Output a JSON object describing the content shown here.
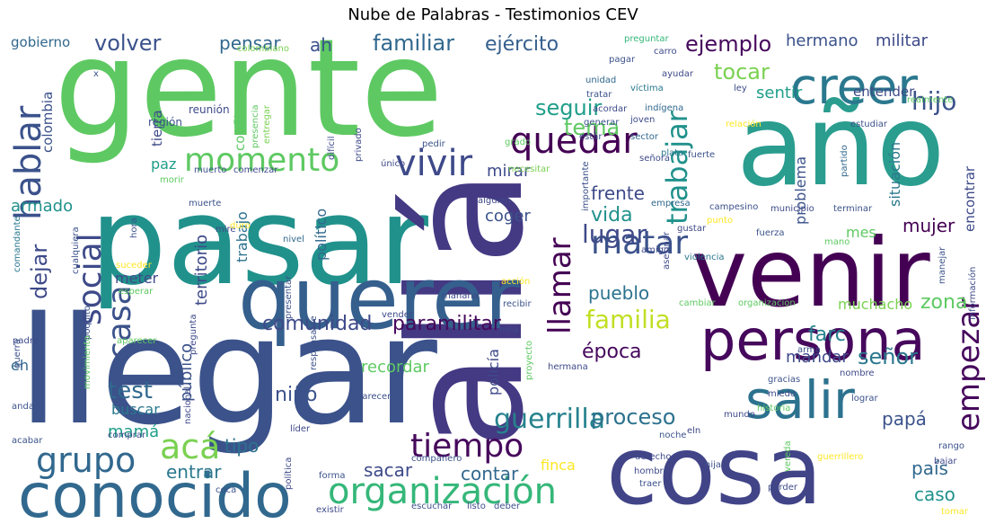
{
  "chart_data": {
    "type": "wordcloud",
    "title": "Nube de Palabras - Testimonios CEV",
    "colormap": "viridis",
    "words": [
      {
        "text": "gente",
        "weight": 1.0,
        "color": "#5ec962"
      },
      {
        "text": "llegar",
        "weight": 1.0,
        "color": "#3b528b"
      },
      {
        "text": "pasar",
        "weight": 0.95,
        "color": "#21918c"
      },
      {
        "text": "allá",
        "weight": 0.95,
        "color": "#443983"
      },
      {
        "text": "año",
        "weight": 0.9,
        "color": "#2a9d8f"
      },
      {
        "text": "venir",
        "weight": 0.88,
        "color": "#440154"
      },
      {
        "text": "querer",
        "weight": 0.85,
        "color": "#355f8d"
      },
      {
        "text": "cosa",
        "weight": 0.85,
        "color": "#414487"
      },
      {
        "text": "conocido",
        "weight": 0.65,
        "color": "#31688e"
      },
      {
        "text": "persona",
        "weight": 0.62,
        "color": "#46085c"
      },
      {
        "text": "creer",
        "weight": 0.55,
        "color": "#2a788e"
      },
      {
        "text": "salir",
        "weight": 0.5,
        "color": "#2c728e"
      },
      {
        "text": "organización",
        "weight": 0.45,
        "color": "#35b779"
      },
      {
        "text": "vivir",
        "weight": 0.4,
        "color": "#3e4a89"
      },
      {
        "text": "hablar",
        "weight": 0.4,
        "color": "#3b528b"
      },
      {
        "text": "quedar",
        "weight": 0.4,
        "color": "#440154"
      },
      {
        "text": "momento",
        "weight": 0.38,
        "color": "#5ec962"
      },
      {
        "text": "tiempo",
        "weight": 0.38,
        "color": "#46085c"
      },
      {
        "text": "matar",
        "weight": 0.36,
        "color": "#3b528b"
      },
      {
        "text": "acá",
        "weight": 0.36,
        "color": "#7ad151"
      },
      {
        "text": "grupo",
        "weight": 0.35,
        "color": "#31688e"
      },
      {
        "text": "social",
        "weight": 0.32,
        "color": "#3e4a89"
      },
      {
        "text": "casa",
        "weight": 0.32,
        "color": "#3b528b"
      },
      {
        "text": "empezar",
        "weight": 0.3,
        "color": "#46085c"
      },
      {
        "text": "llamar",
        "weight": 0.3,
        "color": "#440154"
      },
      {
        "text": "trabajar",
        "weight": 0.3,
        "color": "#21918c"
      },
      {
        "text": "guerrilla",
        "weight": 0.28,
        "color": "#26828e"
      },
      {
        "text": "familia",
        "weight": 0.27,
        "color": "#c2df23"
      },
      {
        "text": "familiar",
        "weight": 0.26,
        "color": "#31688e"
      },
      {
        "text": "lugar",
        "weight": 0.26,
        "color": "#3e4a89"
      },
      {
        "text": "hijo",
        "weight": 0.26,
        "color": "#3b528b"
      },
      {
        "text": "seguir",
        "weight": 0.25,
        "color": "#1f9e89"
      },
      {
        "text": "tocar",
        "weight": 0.25,
        "color": "#7ad151"
      },
      {
        "text": "ejemplo",
        "weight": 0.24,
        "color": "#46085c"
      },
      {
        "text": "tema",
        "weight": 0.24,
        "color": "#5ec962"
      },
      {
        "text": "volver",
        "weight": 0.22,
        "color": "#3b528b"
      },
      {
        "text": "ejército",
        "weight": 0.22,
        "color": "#355f8d"
      },
      {
        "text": "comunidad",
        "weight": 0.22,
        "color": "#3e4a89"
      },
      {
        "text": "paramilitar",
        "weight": 0.22,
        "color": "#46085c"
      },
      {
        "text": "proceso",
        "weight": 0.22,
        "color": "#2c728e"
      },
      {
        "text": "señor",
        "weight": 0.22,
        "color": "#2a788e"
      },
      {
        "text": "test",
        "weight": 0.22,
        "color": "#31688e"
      },
      {
        "text": "dejar",
        "weight": 0.22,
        "color": "#3e4a89"
      },
      {
        "text": "hermano",
        "weight": 0.2,
        "color": "#3b528b"
      },
      {
        "text": "militar",
        "weight": 0.2,
        "color": "#3e4a89"
      },
      {
        "text": "vida",
        "weight": 0.2,
        "color": "#21918c"
      },
      {
        "text": "frente",
        "weight": 0.2,
        "color": "#3e4a89"
      },
      {
        "text": "mujer",
        "weight": 0.2,
        "color": "#440154"
      },
      {
        "text": "sentir",
        "weight": 0.2,
        "color": "#1f9e89"
      },
      {
        "text": "farc",
        "weight": 0.2,
        "color": "#26828e"
      },
      {
        "text": "entrar",
        "weight": 0.2,
        "color": "#2a788e"
      },
      {
        "text": "niño",
        "weight": 0.2,
        "color": "#3b528b"
      },
      {
        "text": "época",
        "weight": 0.2,
        "color": "#46085c"
      },
      {
        "text": "pueblo",
        "weight": 0.2,
        "color": "#2c728e"
      },
      {
        "text": "zona",
        "weight": 0.2,
        "color": "#5ec962"
      },
      {
        "text": "contar",
        "weight": 0.18,
        "color": "#31688e"
      },
      {
        "text": "sacar",
        "weight": 0.18,
        "color": "#3e4a89"
      },
      {
        "text": "papá",
        "weight": 0.18,
        "color": "#3b528b"
      },
      {
        "text": "tipo",
        "weight": 0.18,
        "color": "#2c728e"
      },
      {
        "text": "mamá",
        "weight": 0.18,
        "color": "#1f9e89"
      },
      {
        "text": "país",
        "weight": 0.18,
        "color": "#31688e"
      },
      {
        "text": "caso",
        "weight": 0.18,
        "color": "#21918c"
      },
      {
        "text": "recordar",
        "weight": 0.18,
        "color": "#5ec962"
      },
      {
        "text": "mandar",
        "weight": 0.18,
        "color": "#3e4a89"
      },
      {
        "text": "pensar",
        "weight": 0.18,
        "color": "#31688e"
      },
      {
        "text": "ah",
        "weight": 0.18,
        "color": "#3b528b"
      },
      {
        "text": "mirar",
        "weight": 0.18,
        "color": "#3e4a89"
      },
      {
        "text": "coger",
        "weight": 0.16,
        "color": "#3b528b"
      },
      {
        "text": "armado",
        "weight": 0.16,
        "color": "#21918c"
      },
      {
        "text": "paz",
        "weight": 0.16,
        "color": "#1f9e89"
      },
      {
        "text": "mes",
        "weight": 0.16,
        "color": "#5ec962"
      },
      {
        "text": "meter",
        "weight": 0.16,
        "color": "#3e4a89"
      },
      {
        "text": "muchacho",
        "weight": 0.16,
        "color": "#7ad151"
      },
      {
        "text": "buscar",
        "weight": 0.16,
        "color": "#2a788e"
      },
      {
        "text": "finca",
        "weight": 0.15,
        "color": "#fde725"
      },
      {
        "text": "entender",
        "weight": 0.15,
        "color": "#3e4a89"
      },
      {
        "text": "gobierno",
        "weight": 0.15,
        "color": "#31688e"
      },
      {
        "text": "colombia",
        "weight": 0.14,
        "color": "#3b528b"
      },
      {
        "text": "territorio",
        "weight": 0.15,
        "color": "#3e4a89"
      },
      {
        "text": "trabajo",
        "weight": 0.14,
        "color": "#2c728e"
      },
      {
        "text": "público",
        "weight": 0.15,
        "color": "#3b528b"
      },
      {
        "text": "político",
        "weight": 0.14,
        "color": "#31688e"
      },
      {
        "text": "policía",
        "weight": 0.14,
        "color": "#3e4a89"
      },
      {
        "text": "problema",
        "weight": 0.14,
        "color": "#3b528b"
      },
      {
        "text": "situación",
        "weight": 0.14,
        "color": "#2a788e"
      },
      {
        "text": "encontrar",
        "weight": 0.14,
        "color": "#3e4a89"
      },
      {
        "text": "eh",
        "weight": 0.14,
        "color": "#31688e"
      },
      {
        "text": "conflicto",
        "weight": 0.12,
        "color": "#5ec962"
      },
      {
        "text": "tierra",
        "weight": 0.12,
        "color": "#3e4a89"
      },
      {
        "text": "región",
        "weight": 0.1,
        "color": "#3b528b"
      },
      {
        "text": "reunión",
        "weight": 0.1,
        "color": "#3e4a89"
      },
      {
        "text": "colombiano",
        "weight": 0.09,
        "color": "#7ad151"
      },
      {
        "text": "preguntar",
        "weight": 0.09,
        "color": "#35b779"
      },
      {
        "text": "carro",
        "weight": 0.09,
        "color": "#3e4a89"
      },
      {
        "text": "pagar",
        "weight": 0.09,
        "color": "#3b528b"
      },
      {
        "text": "unidad",
        "weight": 0.09,
        "color": "#31688e"
      },
      {
        "text": "ayudar",
        "weight": 0.09,
        "color": "#3e4a89"
      },
      {
        "text": "víctima",
        "weight": 0.09,
        "color": "#2a788e"
      },
      {
        "text": "tratar",
        "weight": 0.09,
        "color": "#3b528b"
      },
      {
        "text": "acordar",
        "weight": 0.09,
        "color": "#3e4a89"
      },
      {
        "text": "indígena",
        "weight": 0.09,
        "color": "#31688e"
      },
      {
        "text": "generar",
        "weight": 0.09,
        "color": "#3b528b"
      },
      {
        "text": "joven",
        "weight": 0.09,
        "color": "#3e4a89"
      },
      {
        "text": "estár",
        "weight": 0.09,
        "color": "#3b528b"
      },
      {
        "text": "sector",
        "weight": 0.09,
        "color": "#31688e"
      },
      {
        "text": "ley",
        "weight": 0.09,
        "color": "#3e4a89"
      },
      {
        "text": "realmente",
        "weight": 0.08,
        "color": "#5ec962"
      },
      {
        "text": "estudiar",
        "weight": 0.09,
        "color": "#3b528b"
      },
      {
        "text": "relación",
        "weight": 0.09,
        "color": "#fde725"
      },
      {
        "text": "presencia",
        "weight": 0.09,
        "color": "#5ec962"
      },
      {
        "text": "entregar",
        "weight": 0.09,
        "color": "#7ad151"
      },
      {
        "text": "difícil",
        "weight": 0.09,
        "color": "#3e4a89"
      },
      {
        "text": "pedir",
        "weight": 0.09,
        "color": "#3b528b"
      },
      {
        "text": "grado",
        "weight": 0.09,
        "color": "#5ec962"
      },
      {
        "text": "plata",
        "weight": 0.09,
        "color": "#2a788e"
      },
      {
        "text": "señora",
        "weight": 0.09,
        "color": "#3e4a89"
      },
      {
        "text": "fuerte",
        "weight": 0.09,
        "color": "#3b528b"
      },
      {
        "text": "partido",
        "weight": 0.09,
        "color": "#31688e"
      },
      {
        "text": "único",
        "weight": 0.09,
        "color": "#3e4a89"
      },
      {
        "text": "necesitar",
        "weight": 0.09,
        "color": "#7ad151"
      },
      {
        "text": "muerto",
        "weight": 0.09,
        "color": "#3b528b"
      },
      {
        "text": "comenzar",
        "weight": 0.09,
        "color": "#3e4a89"
      },
      {
        "text": "morir",
        "weight": 0.09,
        "color": "#5ec962"
      },
      {
        "text": "importante",
        "weight": 0.08,
        "color": "#3b528b"
      },
      {
        "text": "alguien",
        "weight": 0.09,
        "color": "#3e4a89"
      },
      {
        "text": "empresa",
        "weight": 0.09,
        "color": "#31688e"
      },
      {
        "text": "muerte",
        "weight": 0.09,
        "color": "#3b528b"
      },
      {
        "text": "mire",
        "weight": 0.08,
        "color": "#3e4a89"
      },
      {
        "text": "duro",
        "weight": 0.09,
        "color": "#fde725"
      },
      {
        "text": "campesino",
        "weight": 0.09,
        "color": "#3b528b"
      },
      {
        "text": "municipio",
        "weight": 0.09,
        "color": "#3e4a89"
      },
      {
        "text": "terminar",
        "weight": 0.09,
        "color": "#3b528b"
      },
      {
        "text": "punto",
        "weight": 0.09,
        "color": "#fde725"
      },
      {
        "text": "hora",
        "weight": 0.08,
        "color": "#3b528b"
      },
      {
        "text": "nivel",
        "weight": 0.09,
        "color": "#31688e"
      },
      {
        "text": "gustar",
        "weight": 0.09,
        "color": "#3e4a89"
      },
      {
        "text": "fuerza",
        "weight": 0.09,
        "color": "#3b528b"
      },
      {
        "text": "mano",
        "weight": 0.08,
        "color": "#5ec962"
      },
      {
        "text": "amigo",
        "weight": 0.09,
        "color": "#3e4a89"
      },
      {
        "text": "violencia",
        "weight": 0.09,
        "color": "#2a788e"
      },
      {
        "text": "cualquiera",
        "weight": 0.08,
        "color": "#3b528b"
      },
      {
        "text": "suceder",
        "weight": 0.09,
        "color": "#fde725"
      },
      {
        "text": "comandante",
        "weight": 0.08,
        "color": "#2a788e"
      },
      {
        "text": "esperar",
        "weight": 0.09,
        "color": "#5ec962"
      },
      {
        "text": "asesinar",
        "weight": 0.08,
        "color": "#3e4a89"
      },
      {
        "text": "acción",
        "weight": 0.09,
        "color": "#fde725"
      },
      {
        "text": "manejar",
        "weight": 0.08,
        "color": "#3b528b"
      },
      {
        "text": "información",
        "weight": 0.08,
        "color": "#3e4a89"
      },
      {
        "text": "cambiar",
        "weight": 0.09,
        "color": "#5ec962"
      },
      {
        "text": "organizacion",
        "weight": 0.09,
        "color": "#5ec962"
      },
      {
        "text": "mañana",
        "weight": 0.09,
        "color": "#3e4a89"
      },
      {
        "text": "recibir",
        "weight": 0.09,
        "color": "#3b528b"
      },
      {
        "text": "vender",
        "weight": 0.09,
        "color": "#3e4a89"
      },
      {
        "text": "presentar",
        "weight": 0.08,
        "color": "#3b528b"
      },
      {
        "text": "padre",
        "weight": 0.09,
        "color": "#3e4a89"
      },
      {
        "text": "poquito",
        "weight": 0.08,
        "color": "#3b528b"
      },
      {
        "text": "aparecer",
        "weight": 0.08,
        "color": "#5ec962"
      },
      {
        "text": "niña",
        "weight": 0.09,
        "color": "#3e4a89"
      },
      {
        "text": "arma",
        "weight": 0.09,
        "color": "#3b528b"
      },
      {
        "text": "pregunta",
        "weight": 0.08,
        "color": "#3e4a89"
      },
      {
        "text": "responsable",
        "weight": 0.08,
        "color": "#3b528b"
      },
      {
        "text": "proyecto",
        "weight": 0.08,
        "color": "#5ec962"
      },
      {
        "text": "hermana",
        "weight": 0.09,
        "color": "#3e4a89"
      },
      {
        "text": "gracias",
        "weight": 0.09,
        "color": "#3b528b"
      },
      {
        "text": "nombre",
        "weight": 0.09,
        "color": "#3e4a89"
      },
      {
        "text": "guerra",
        "weight": 0.08,
        "color": "#3b528b"
      },
      {
        "text": "movimiento",
        "weight": 0.08,
        "color": "#5ec962"
      },
      {
        "text": "nacional",
        "weight": 0.08,
        "color": "#3e4a89"
      },
      {
        "text": "parecer",
        "weight": 0.09,
        "color": "#3b528b"
      },
      {
        "text": "miedo",
        "weight": 0.09,
        "color": "#3e4a89"
      },
      {
        "text": "lograr",
        "weight": 0.09,
        "color": "#3b528b"
      },
      {
        "text": "historia",
        "weight": 0.09,
        "color": "#5ec962"
      },
      {
        "text": "mundo",
        "weight": 0.09,
        "color": "#3e4a89"
      },
      {
        "text": "andar",
        "weight": 0.09,
        "color": "#3b528b"
      },
      {
        "text": "líder",
        "weight": 0.09,
        "color": "#3e4a89"
      },
      {
        "text": "noche",
        "weight": 0.09,
        "color": "#3b528b"
      },
      {
        "text": "eln",
        "weight": 0.09,
        "color": "#3e4a89"
      },
      {
        "text": "acabar",
        "weight": 0.09,
        "color": "#3b528b"
      },
      {
        "text": "comprar",
        "weight": 0.09,
        "color": "#3e4a89"
      },
      {
        "text": "rango",
        "weight": 0.09,
        "color": "#3b528b"
      },
      {
        "text": "bajar",
        "weight": 0.09,
        "color": "#3e4a89"
      },
      {
        "text": "guerrillero",
        "weight": 0.09,
        "color": "#fde725"
      },
      {
        "text": "compañero",
        "weight": 0.09,
        "color": "#3b528b"
      },
      {
        "text": "derecho",
        "weight": 0.09,
        "color": "#3e4a89"
      },
      {
        "text": "hija",
        "weight": 0.09,
        "color": "#3b528b"
      },
      {
        "text": "hombre",
        "weight": 0.09,
        "color": "#3e4a89"
      },
      {
        "text": "traer",
        "weight": 0.09,
        "color": "#3b528b"
      },
      {
        "text": "vereda",
        "weight": 0.08,
        "color": "#5ec962"
      },
      {
        "text": "perder",
        "weight": 0.09,
        "color": "#3e4a89"
      },
      {
        "text": "forma",
        "weight": 0.09,
        "color": "#3b528b"
      },
      {
        "text": "política",
        "weight": 0.08,
        "color": "#3e4a89"
      },
      {
        "text": "coca",
        "weight": 0.09,
        "color": "#3b528b"
      },
      {
        "text": "existir",
        "weight": 0.09,
        "color": "#3e4a89"
      },
      {
        "text": "escuchar",
        "weight": 0.09,
        "color": "#3b528b"
      },
      {
        "text": "listo",
        "weight": 0.09,
        "color": "#3e4a89"
      },
      {
        "text": "deber",
        "weight": 0.09,
        "color": "#3b528b"
      },
      {
        "text": "tomar",
        "weight": 0.09,
        "color": "#fde725"
      },
      {
        "text": "privado",
        "weight": 0.09,
        "color": "#3e4a89"
      },
      {
        "text": "x",
        "weight": 0.08,
        "color": "#3b528b"
      }
    ]
  }
}
